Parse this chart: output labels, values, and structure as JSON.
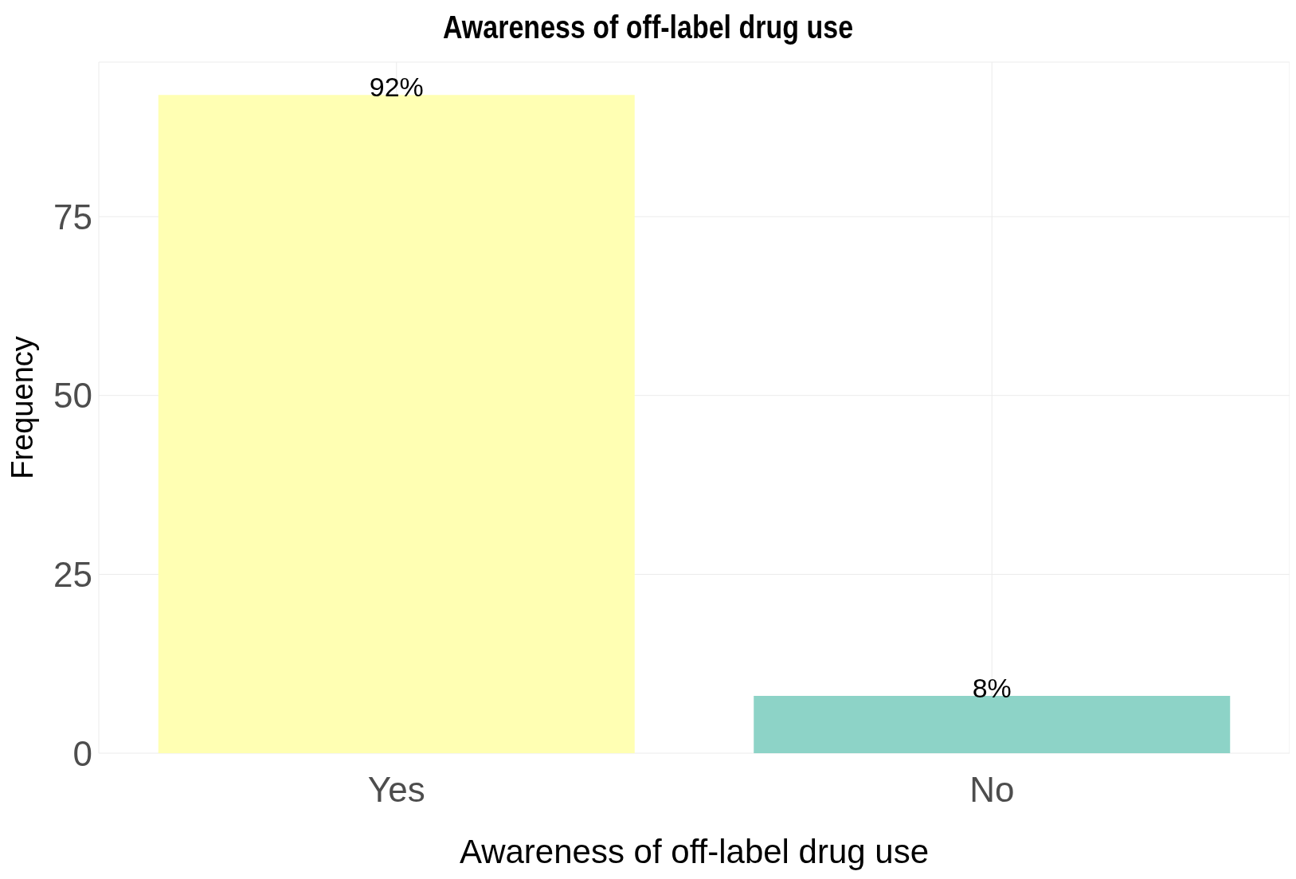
{
  "chart_data": {
    "type": "bar",
    "title": "Awareness of off-label drug use",
    "xlabel": "Awareness of off-label drug use",
    "ylabel": "Frequency",
    "categories": [
      "Yes",
      "No"
    ],
    "values": [
      92,
      8
    ],
    "colors": [
      "#ffffb3",
      "#8dd3c7"
    ],
    "value_labels": [
      "92%",
      "8%"
    ],
    "ylim": [
      0,
      96.6
    ],
    "yticks": [
      0,
      25,
      50,
      75
    ],
    "grid": true
  }
}
